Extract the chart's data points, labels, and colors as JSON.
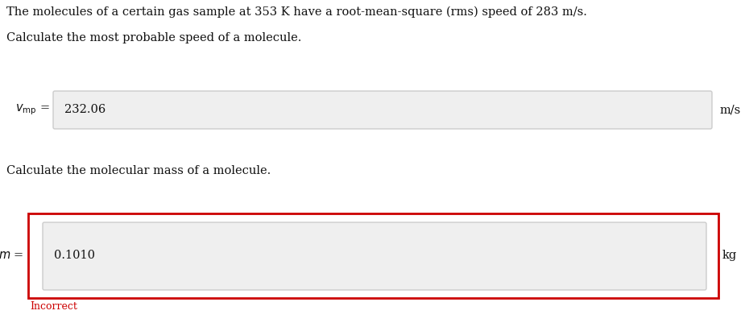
{
  "title_text": "The molecules of a certain gas sample at 353 K have a root-mean-square (rms) speed of 283 m/s.",
  "section1_label": "Calculate the most probable speed of a molecule.",
  "var1_label_pre": "$v_{\\mathrm{mp}}$",
  "var1_label_eq": " =",
  "var1_value": "232.06",
  "var1_unit": "m/s",
  "section2_label": "Calculate the molecular mass of a molecule.",
  "var2_label_pre": "$m$",
  "var2_label_eq": " =",
  "var2_value": "0.1010",
  "var2_unit": "kg",
  "incorrect_text": "Incorrect",
  "incorrect_color": "#cc0000",
  "box_bg": "#efefef",
  "box_border": "#cccccc",
  "outer_box2_border": "#cc0000",
  "bg_color": "#ffffff",
  "text_color": "#111111",
  "font_size_main": 10.5,
  "font_size_value": 10.5
}
